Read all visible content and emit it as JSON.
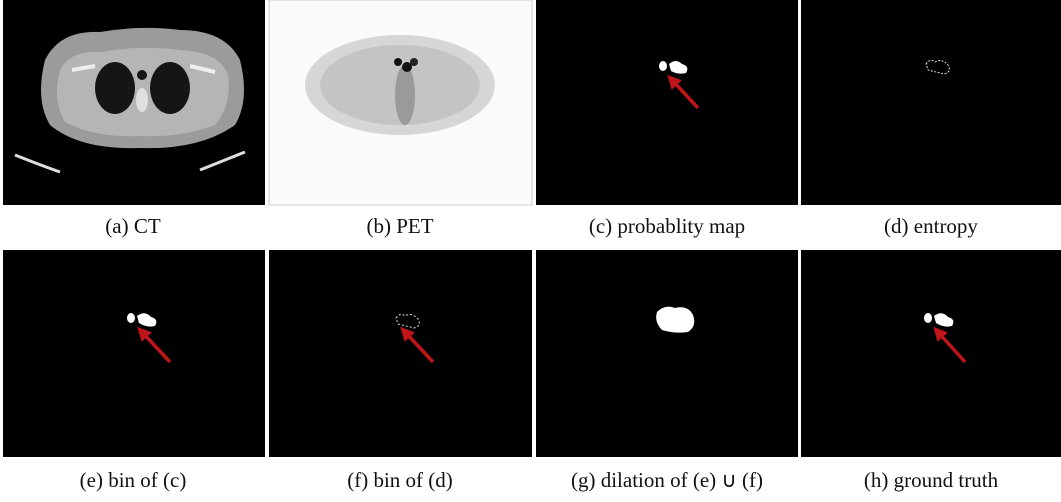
{
  "figure": {
    "panels": [
      {
        "caption": "(a) CT"
      },
      {
        "caption": "(b) PET"
      },
      {
        "caption": "(c) probablity map"
      },
      {
        "caption": "(d) entropy"
      },
      {
        "caption": "(e) bin of (c)"
      },
      {
        "caption": "(f) bin of (d)"
      },
      {
        "caption": "(g) dilation of (e) ∪ (f)"
      },
      {
        "caption": "(h) ground truth"
      }
    ]
  }
}
